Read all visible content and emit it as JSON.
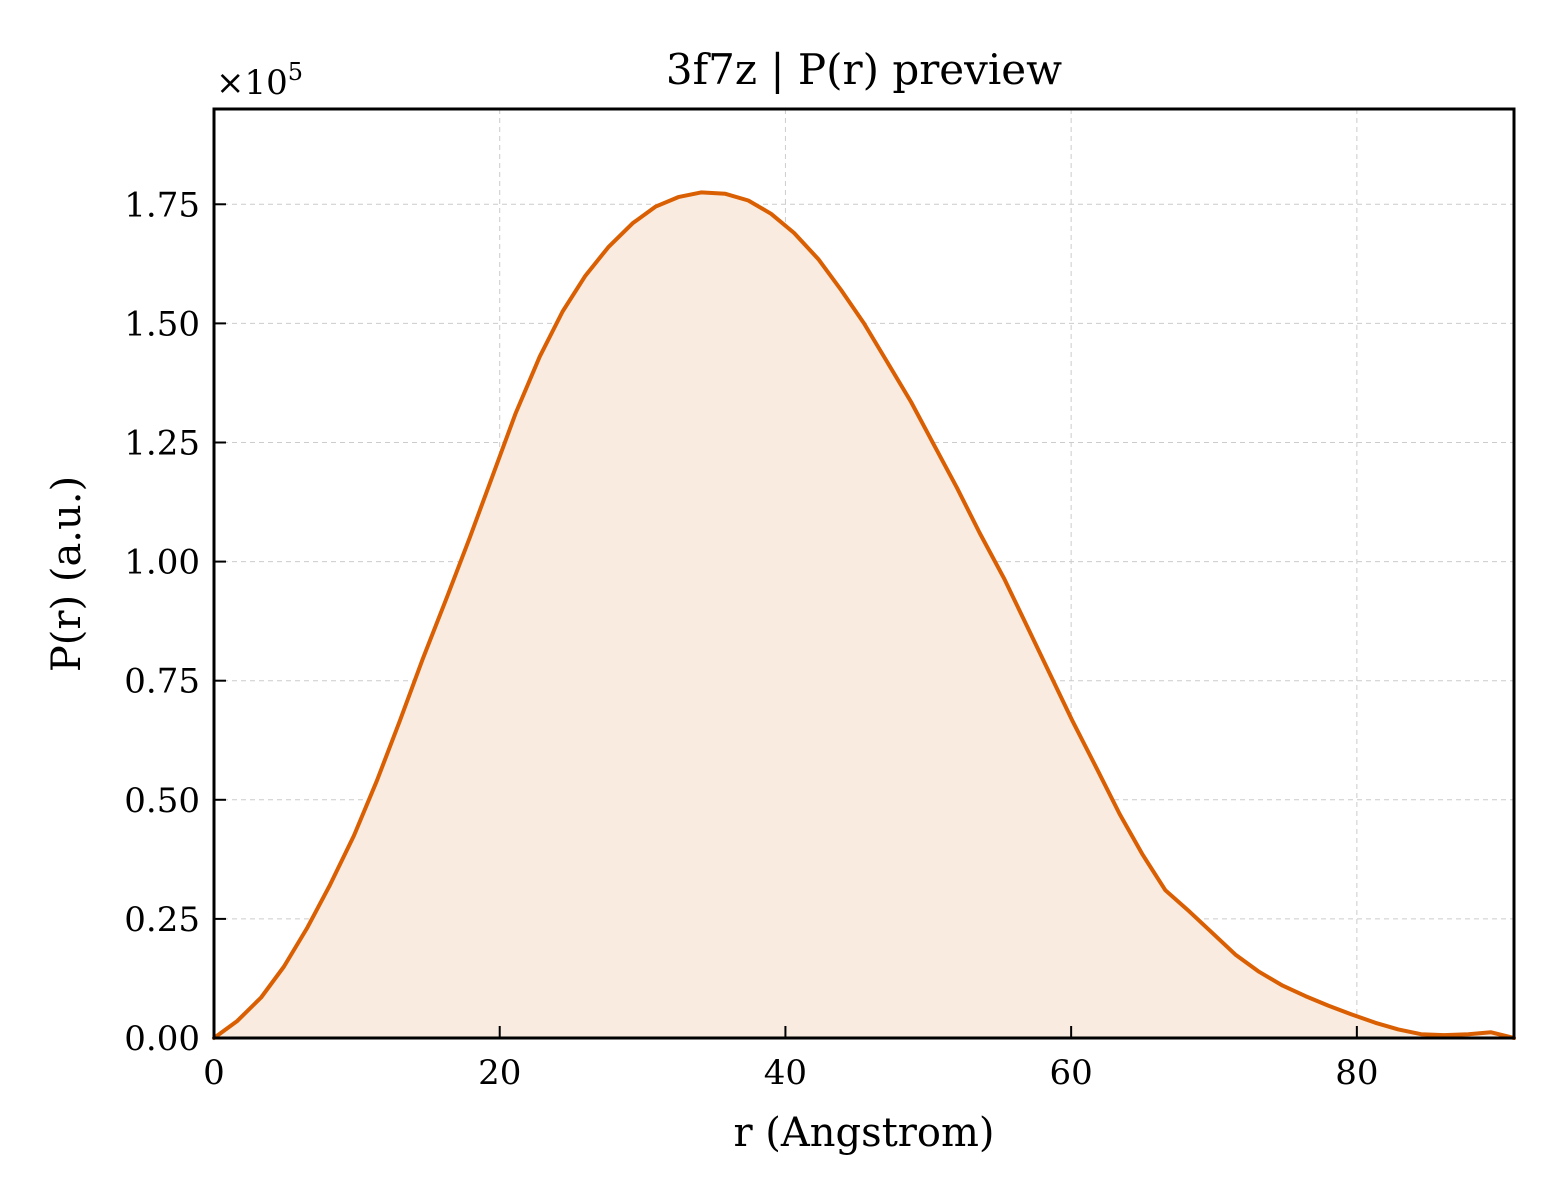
{
  "chart_data": {
    "type": "area",
    "title": "3f7z | P(r) preview",
    "xlabel": "r (Angstrom)",
    "ylabel": "P(r) (a.u.)",
    "y_multiplier_base": "×10",
    "y_multiplier_exponent": "5",
    "xlim": [
      0,
      91
    ],
    "ylim": [
      0,
      1.95
    ],
    "x_ticks": [
      0,
      20,
      40,
      60,
      80
    ],
    "x_tick_labels": [
      "0",
      "20",
      "40",
      "60",
      "80"
    ],
    "y_ticks": [
      0,
      0.25,
      0.5,
      0.75,
      1.0,
      1.25,
      1.5,
      1.75
    ],
    "y_tick_labels": [
      "0.00",
      "0.25",
      "0.50",
      "0.75",
      "1.00",
      "1.25",
      "1.50",
      "1.75"
    ],
    "grid": true,
    "ticks_direction": "in",
    "line_color": "#d95f02",
    "fill_color": "#f9ebe0",
    "series": [
      {
        "x": [
          0,
          1.6,
          3.3,
          4.9,
          6.5,
          8.1,
          9.8,
          11.4,
          13.0,
          14.6,
          16.3,
          17.9,
          19.5,
          21.1,
          22.8,
          24.4,
          26.0,
          27.6,
          29.3,
          30.9,
          32.5,
          34.1,
          35.8,
          37.4,
          39.0,
          40.6,
          42.3,
          43.9,
          45.5,
          47.1,
          48.8,
          50.4,
          52.0,
          53.6,
          55.3,
          56.9,
          58.5,
          60.1,
          61.8,
          63.4,
          65.0,
          66.6,
          68.3,
          69.9,
          71.5,
          73.1,
          74.8,
          76.4,
          78.0,
          79.6,
          81.3,
          82.9,
          84.5,
          86.1,
          87.8,
          89.4,
          91.0
        ],
        "y": [
          0.0,
          0.035,
          0.085,
          0.15,
          0.23,
          0.32,
          0.425,
          0.54,
          0.665,
          0.795,
          0.925,
          1.05,
          1.18,
          1.31,
          1.43,
          1.525,
          1.6,
          1.66,
          1.71,
          1.745,
          1.765,
          1.775,
          1.772,
          1.758,
          1.73,
          1.69,
          1.635,
          1.57,
          1.5,
          1.42,
          1.335,
          1.245,
          1.155,
          1.06,
          0.965,
          0.865,
          0.765,
          0.665,
          0.565,
          0.47,
          0.385,
          0.31,
          0.265,
          0.22,
          0.175,
          0.14,
          0.11,
          0.088,
          0.068,
          0.05,
          0.032,
          0.018,
          0.008,
          0.006,
          0.008,
          0.012,
          0.0
        ]
      }
    ]
  }
}
